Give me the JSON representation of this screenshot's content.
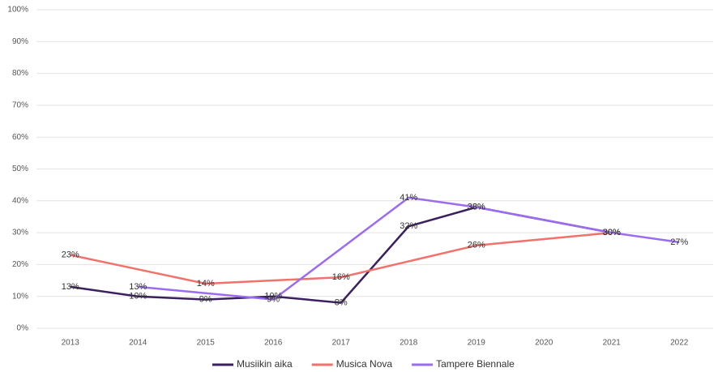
{
  "chart_data": {
    "type": "line",
    "categories": [
      "2013",
      "2014",
      "2015",
      "2016",
      "2017",
      "2018",
      "2019",
      "2020",
      "2021",
      "2022"
    ],
    "series": [
      {
        "name": "Musiikin aika",
        "color": "#3b1f5e",
        "values": [
          13,
          10,
          9,
          10,
          8,
          32,
          38,
          34,
          30,
          null
        ],
        "value_labels": [
          "13%",
          "10%",
          "9%",
          "10%",
          "8%",
          "32%",
          "38%",
          null,
          "30%",
          null
        ]
      },
      {
        "name": "Musica Nova",
        "color": "#f2716b",
        "values": [
          23,
          18.5,
          14,
          15,
          16,
          21,
          26,
          28,
          30,
          null
        ],
        "value_labels": [
          "23%",
          null,
          "14%",
          null,
          "16%",
          null,
          "26%",
          null,
          "30%",
          null
        ]
      },
      {
        "name": "Tampere Biennale",
        "color": "#9b6cf0",
        "values": [
          null,
          13,
          11,
          9,
          25,
          41,
          38,
          34,
          30,
          27
        ],
        "value_labels": [
          null,
          "13%",
          null,
          "9%",
          null,
          "41%",
          "38%",
          null,
          "30%",
          "27%"
        ]
      }
    ],
    "ylim": [
      0,
      100
    ],
    "yticks": [
      {
        "value": 0,
        "label": "0%"
      },
      {
        "value": 10,
        "label": "10%"
      },
      {
        "value": 20,
        "label": "20%"
      },
      {
        "value": 30,
        "label": "30%"
      },
      {
        "value": 40,
        "label": "40%"
      },
      {
        "value": 50,
        "label": "50%"
      },
      {
        "value": 60,
        "label": "60%"
      },
      {
        "value": 70,
        "label": "70%"
      },
      {
        "value": 80,
        "label": "80%"
      },
      {
        "value": 90,
        "label": "90%"
      },
      {
        "value": 100,
        "label": "100%"
      }
    ],
    "grid": true,
    "legend": "bottom"
  }
}
